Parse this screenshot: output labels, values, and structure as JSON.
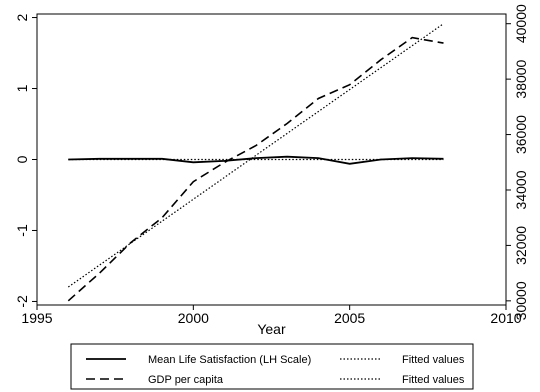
{
  "chart_data": {
    "type": "line",
    "xlabel": "Year",
    "ylabel": "",
    "ylabel_right": "",
    "xlim": [
      1995,
      2010
    ],
    "ylim": [
      -2.05,
      2.05
    ],
    "ylim_right": [
      29850,
      40350
    ],
    "xticks": [
      "1995",
      "2000",
      "2005",
      "2010"
    ],
    "yticks": [
      "-2",
      "-1",
      "0",
      "1",
      "2"
    ],
    "yticks_right": [
      "30000",
      "32000",
      "34000",
      "36000",
      "38000",
      "40000"
    ],
    "grid": false,
    "legend_position": "bottom",
    "series": [
      {
        "name": "Mean Life Satisfaction (LH Scale)",
        "axis": "left",
        "style": "solid",
        "x": [
          1996,
          1997,
          1998,
          1999,
          2000,
          2001,
          2002,
          2003,
          2004,
          2005,
          2006,
          2007,
          2008
        ],
        "y": [
          0.0,
          0.01,
          0.01,
          0.01,
          -0.04,
          -0.02,
          0.02,
          0.04,
          0.02,
          -0.06,
          0.0,
          0.02,
          0.01
        ]
      },
      {
        "name": "Fitted values",
        "axis": "left",
        "style": "dotted",
        "x": [
          1996,
          2008
        ],
        "y": [
          0.0,
          0.0
        ]
      },
      {
        "name": "GDP per capita",
        "axis": "right",
        "style": "dashed",
        "x": [
          1996,
          1997,
          1998,
          1999,
          2000,
          2001,
          2002,
          2003,
          2004,
          2005,
          2006,
          2007,
          2008
        ],
        "y": [
          30000,
          31000,
          32100,
          33000,
          34300,
          35000,
          35600,
          36400,
          37300,
          37800,
          38700,
          39500,
          39300
        ]
      },
      {
        "name": "Fitted values",
        "axis": "right",
        "style": "dotted",
        "x": [
          1996,
          2008
        ],
        "y": [
          30500,
          40000
        ]
      }
    ]
  }
}
